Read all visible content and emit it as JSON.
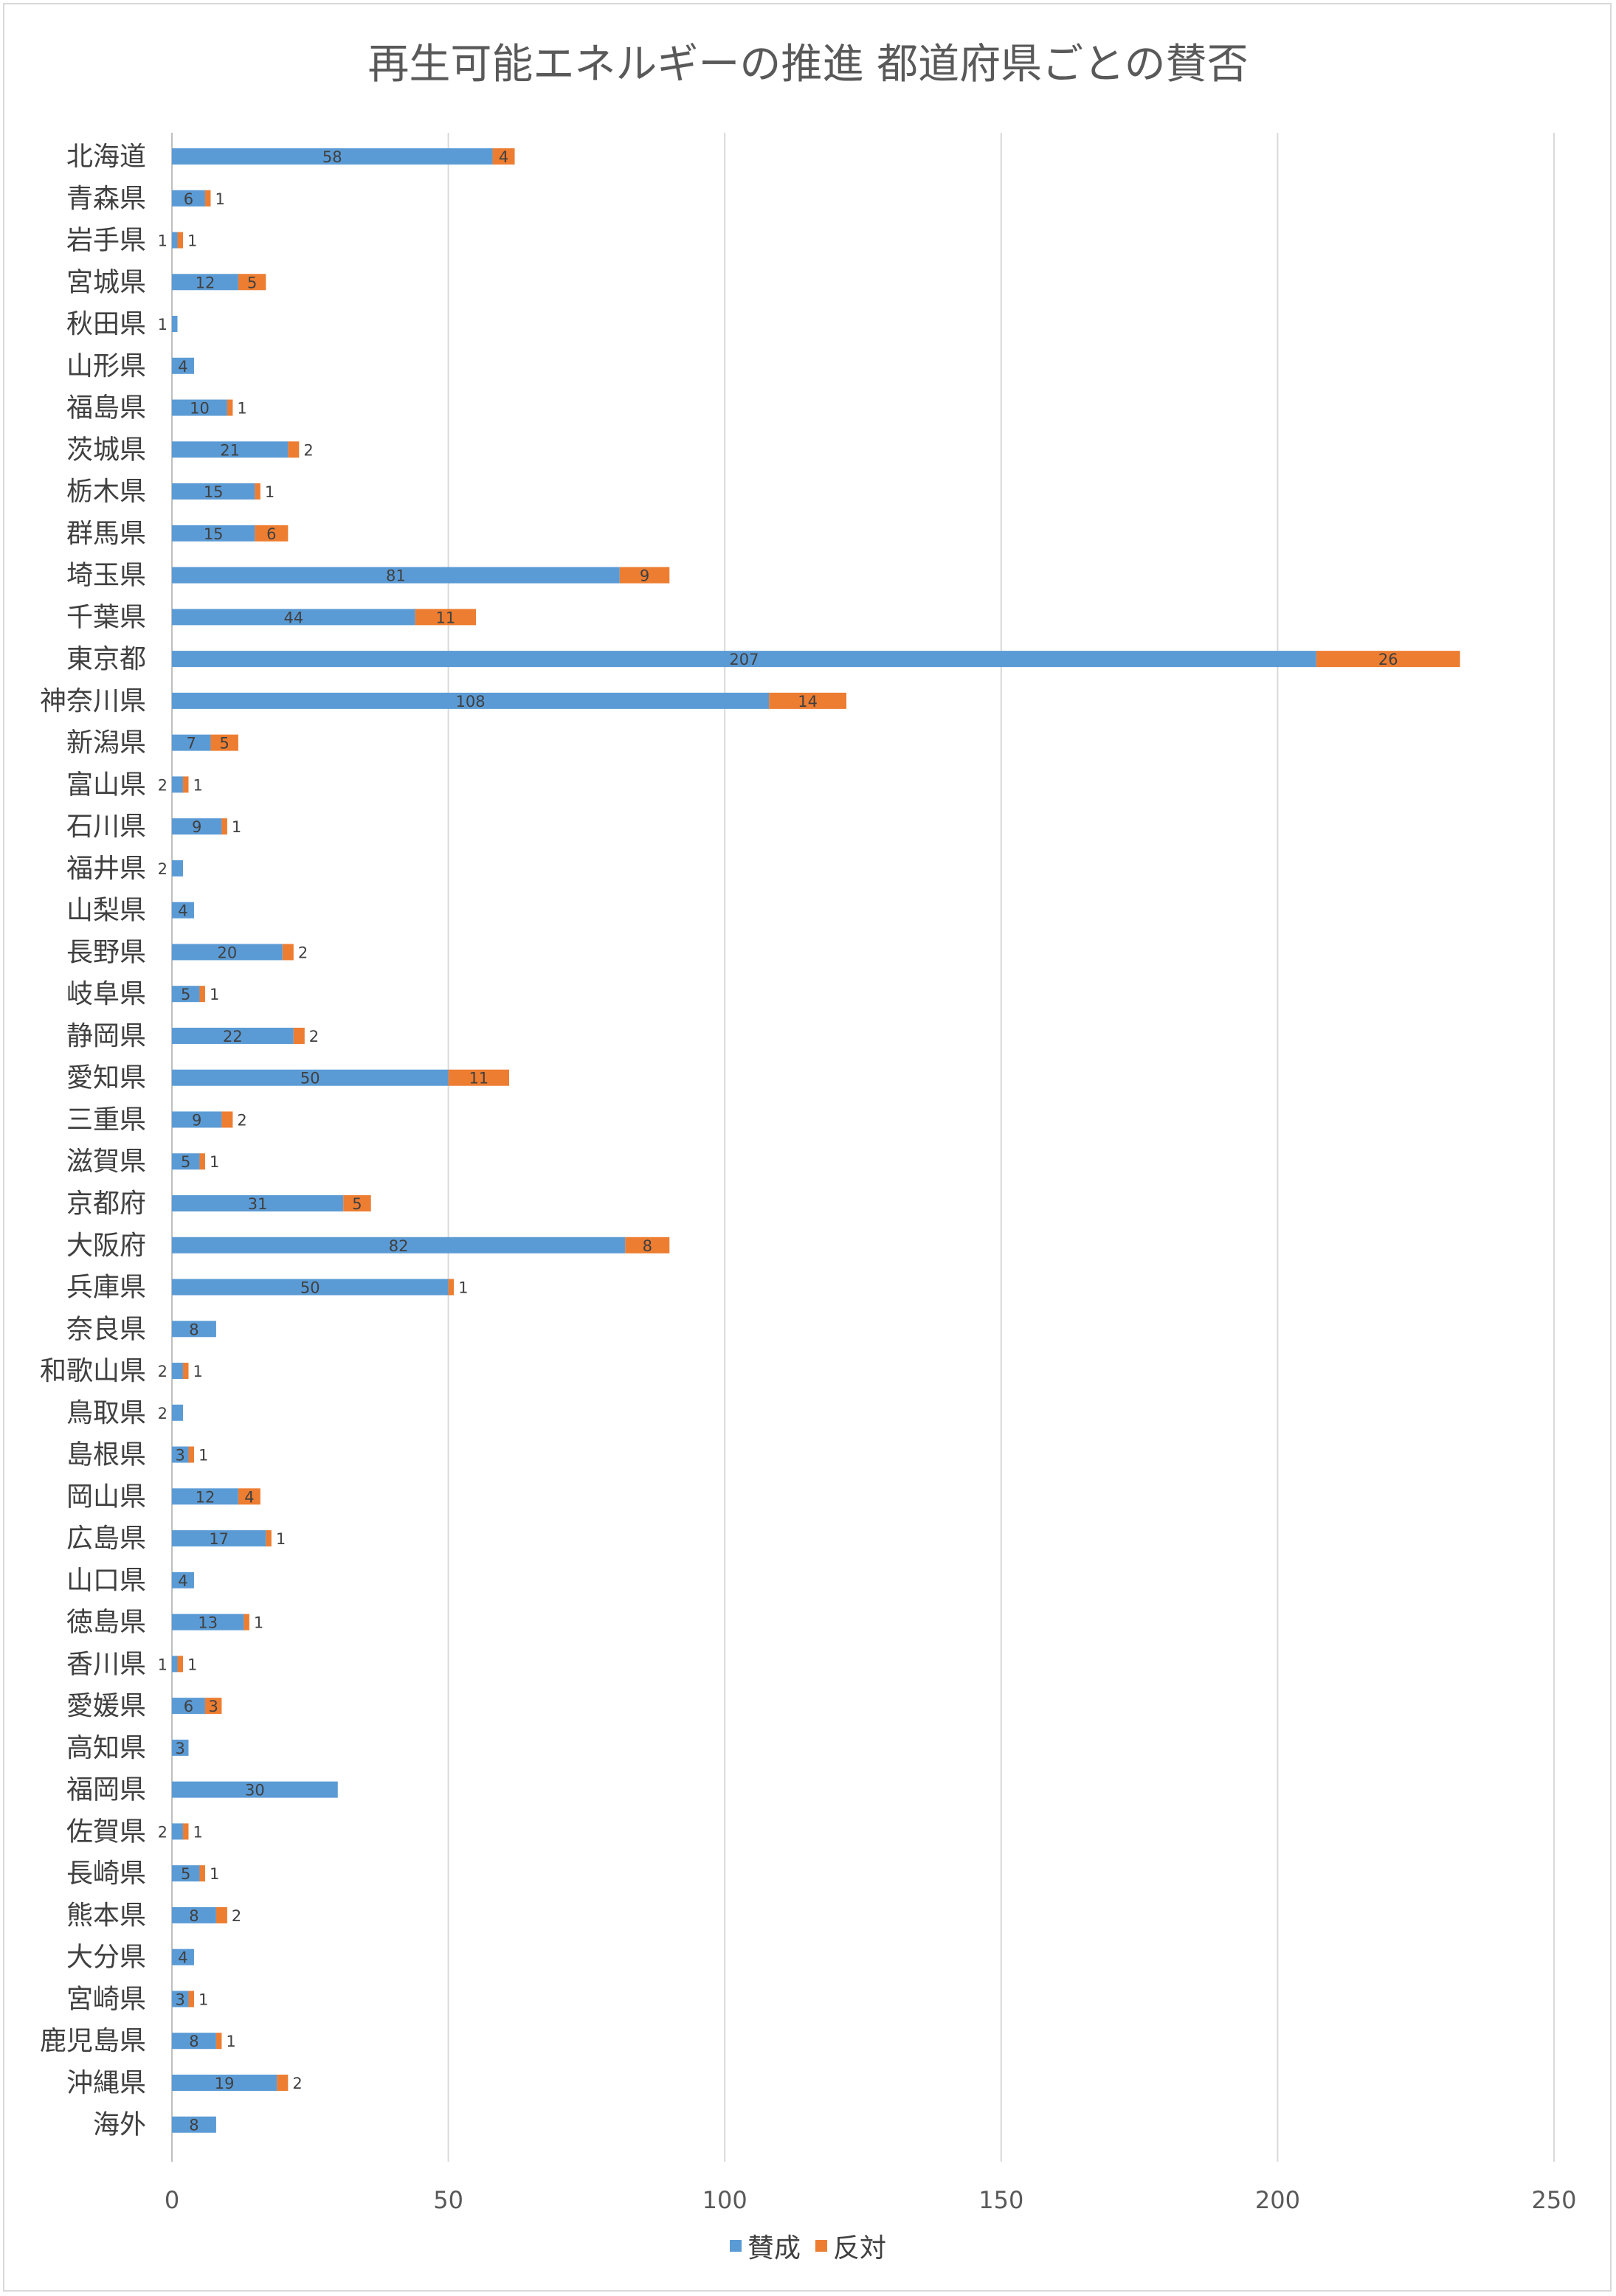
{
  "chart_data": {
    "type": "bar",
    "orientation": "horizontal",
    "stacked": true,
    "title": "再生可能エネルギーの推進 都道府県ごとの賛否",
    "categories": [
      "北海道",
      "青森県",
      "岩手県",
      "宮城県",
      "秋田県",
      "山形県",
      "福島県",
      "茨城県",
      "栃木県",
      "群馬県",
      "埼玉県",
      "千葉県",
      "東京都",
      "神奈川県",
      "新潟県",
      "富山県",
      "石川県",
      "福井県",
      "山梨県",
      "長野県",
      "岐阜県",
      "静岡県",
      "愛知県",
      "三重県",
      "滋賀県",
      "京都府",
      "大阪府",
      "兵庫県",
      "奈良県",
      "和歌山県",
      "鳥取県",
      "島根県",
      "岡山県",
      "広島県",
      "山口県",
      "徳島県",
      "香川県",
      "愛媛県",
      "高知県",
      "福岡県",
      "佐賀県",
      "長崎県",
      "熊本県",
      "大分県",
      "宮崎県",
      "鹿児島県",
      "沖縄県",
      "海外"
    ],
    "series": [
      {
        "name": "賛成",
        "color": "#5b9bd5",
        "values": [
          58,
          6,
          1,
          12,
          1,
          4,
          10,
          21,
          15,
          15,
          81,
          44,
          207,
          108,
          7,
          2,
          9,
          2,
          4,
          20,
          5,
          22,
          50,
          9,
          5,
          31,
          82,
          50,
          8,
          2,
          2,
          3,
          12,
          17,
          4,
          13,
          1,
          6,
          3,
          30,
          2,
          5,
          8,
          4,
          3,
          8,
          19,
          8
        ]
      },
      {
        "name": "反対",
        "color": "#ed7d31",
        "values": [
          4,
          1,
          1,
          5,
          null,
          null,
          1,
          2,
          1,
          6,
          9,
          11,
          26,
          14,
          5,
          1,
          1,
          null,
          null,
          2,
          1,
          2,
          11,
          2,
          1,
          5,
          8,
          1,
          null,
          1,
          null,
          1,
          4,
          1,
          null,
          1,
          1,
          3,
          null,
          null,
          1,
          1,
          2,
          null,
          1,
          1,
          2,
          null
        ]
      }
    ],
    "xlim": [
      0,
      250
    ],
    "xticks": [
      0,
      50,
      100,
      150,
      200,
      250
    ],
    "grid": true,
    "legend": "bottom"
  }
}
